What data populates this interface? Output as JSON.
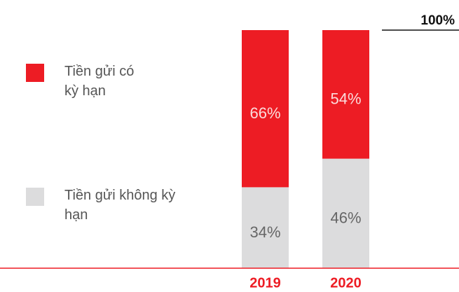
{
  "chart_data": {
    "type": "stacked_bar",
    "categories": [
      "2019",
      "2020"
    ],
    "series": [
      {
        "name": "Tiền gửi không kỳ hạn",
        "color": "#dcdcdd",
        "values": [
          34,
          46
        ],
        "value_labels": [
          "34%",
          "46%"
        ]
      },
      {
        "name": "Tiền gửi có kỳ hạn",
        "color": "#ed1c24",
        "values": [
          66,
          54
        ],
        "value_labels": [
          "66%",
          "54%"
        ]
      }
    ],
    "ylim": [
      0,
      100
    ],
    "yticks": [
      {
        "value": 100,
        "label": "100%"
      }
    ],
    "legend": "left"
  }
}
